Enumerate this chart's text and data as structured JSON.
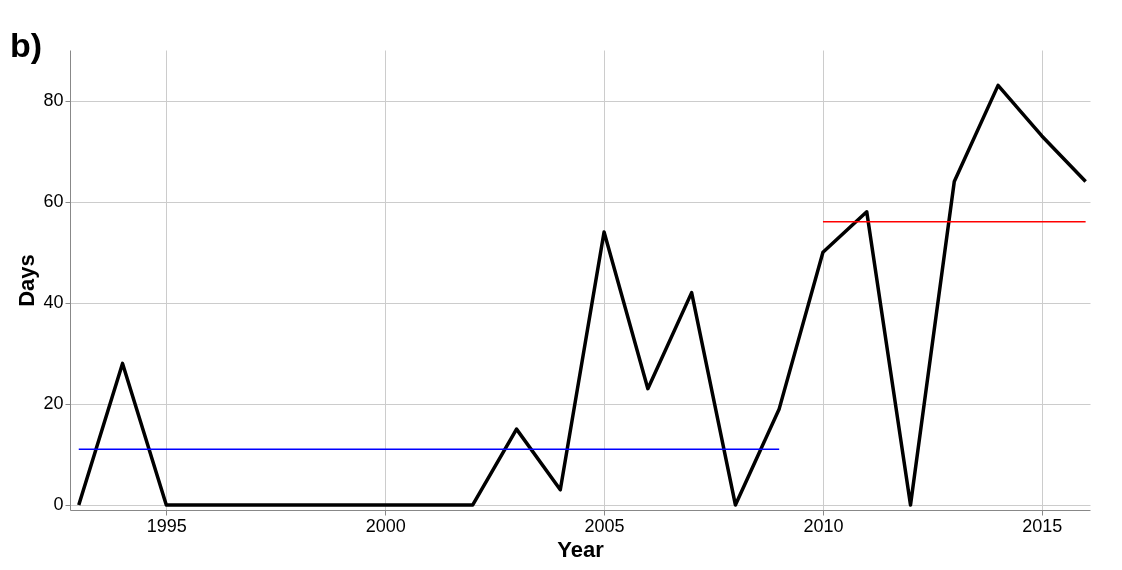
{
  "chart_data": {
    "type": "line",
    "xlabel": "Year",
    "ylabel": "Days",
    "x": [
      1993,
      1994,
      1995,
      1996,
      1997,
      1998,
      1999,
      2000,
      2001,
      2002,
      2003,
      2004,
      2005,
      2006,
      2007,
      2008,
      2009,
      2010,
      2011,
      2012,
      2013,
      2014,
      2015,
      2016
    ],
    "series": [
      {
        "color": "#000000",
        "values": [
          0,
          28,
          0,
          0,
          0,
          0,
          0,
          0,
          0,
          0,
          15,
          3,
          54,
          23,
          42,
          0,
          19,
          50,
          58,
          0,
          64,
          83,
          73,
          64
        ]
      },
      {
        "type": "line",
        "color": "#0000ff",
        "x": [
          1993,
          2009
        ],
        "values": [
          11,
          11
        ]
      },
      {
        "type": "line",
        "color": "#ff0000",
        "x": [
          2010,
          2016
        ],
        "values": [
          56,
          56
        ]
      }
    ],
    "xlim": [
      1992.8,
      2016.1
    ],
    "ylim": [
      -1,
      90
    ],
    "xticks": [
      1995,
      2000,
      2005,
      2010,
      2015
    ],
    "yticks": [
      0,
      20,
      40,
      60,
      80
    ],
    "grid": true,
    "annotations": [
      "b)"
    ]
  }
}
